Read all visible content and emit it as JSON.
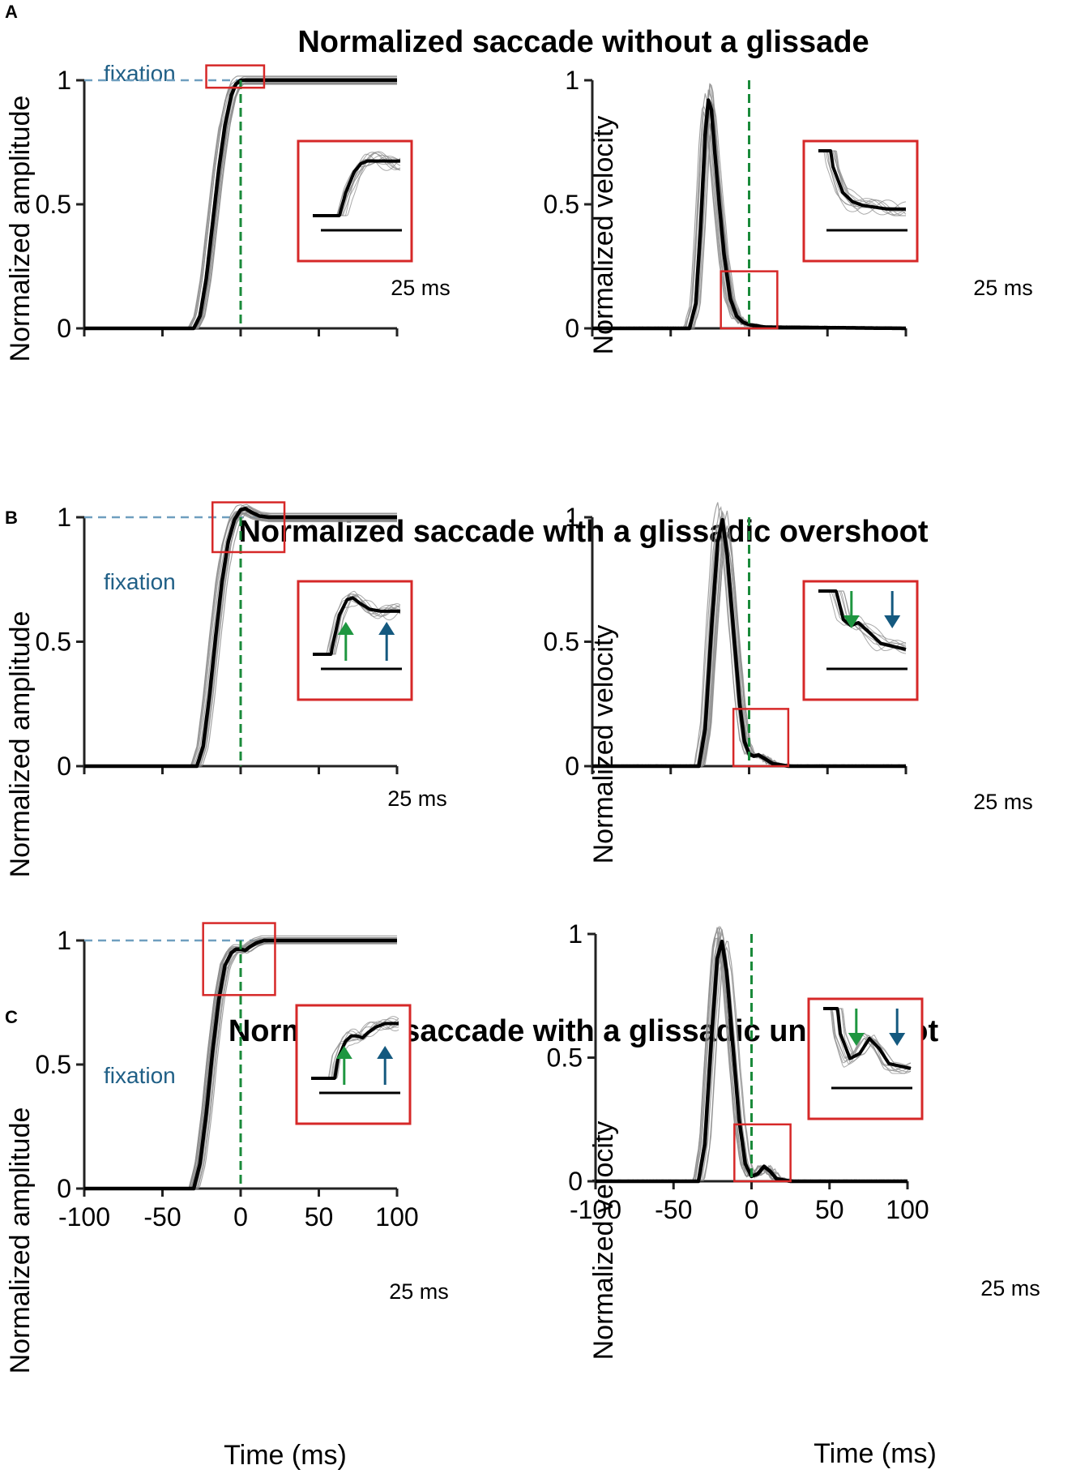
{
  "panels": [
    {
      "letter": "A",
      "title": "Normalized saccade without a glissade",
      "amplitude": {
        "ylabel": "Normalized amplitude",
        "fixation_label": "fixation",
        "inset_scale": "25 ms"
      },
      "velocity": {
        "ylabel": "Normalized velocity",
        "inset_scale": "25 ms"
      }
    },
    {
      "letter": "B",
      "title": "Normalized  saccade with a glissadic overshoot",
      "amplitude": {
        "ylabel": "Normalized amplitude",
        "fixation_label": "fixation",
        "inset_scale": "25 ms"
      },
      "velocity": {
        "ylabel": "Normalized velocity",
        "inset_scale": "25 ms"
      }
    },
    {
      "letter": "C",
      "title": "Normalized saccade with a glissadic undershoot",
      "amplitude": {
        "ylabel": "Normalized amplitude",
        "fixation_label": "fixation",
        "inset_scale": "25 ms"
      },
      "velocity": {
        "ylabel": "Normalized velocity",
        "inset_scale": "25 ms"
      }
    }
  ],
  "axes": {
    "xlabel": "Time (ms)",
    "xticks": [
      "-100",
      "-50",
      "0",
      "50",
      "100"
    ],
    "yticks": [
      "0",
      "0.5",
      "1"
    ]
  },
  "colors": {
    "mean_trace": "#000000",
    "individual_traces": "#8c8c8c",
    "saccade_end_line": "#1a8a3a",
    "fixation_line": "#6f9fbf",
    "zoom_box": "#d62828",
    "green_arrow": "#1e9640",
    "blue_arrow": "#14597f"
  },
  "chart_data": [
    {
      "type": "line",
      "panel": "A",
      "title": "Normalized saccade without a glissade",
      "xlabel": "",
      "ylabel": "Normalized amplitude",
      "xlim": [
        -100,
        100
      ],
      "ylim": [
        0,
        1
      ],
      "annotations": [
        "fixation level at 1",
        "saccade end at 0 ms",
        "inset: zoom on -25 to 15 ms",
        "scale bar 25 ms"
      ],
      "series": [
        {
          "name": "mean",
          "x": [
            -100,
            -30,
            -26,
            -22,
            -18,
            -14,
            -10,
            -6,
            -3,
            0,
            5,
            20,
            100
          ],
          "y": [
            0,
            0,
            0.05,
            0.2,
            0.42,
            0.64,
            0.82,
            0.94,
            0.985,
            1.0,
            1.0,
            1.0,
            1.0
          ]
        }
      ]
    },
    {
      "type": "line",
      "panel": "A",
      "title": "Normalized saccade without a glissade",
      "xlabel": "",
      "ylabel": "Normalized velocity",
      "xlim": [
        -100,
        100
      ],
      "ylim": [
        0,
        1
      ],
      "annotations": [
        "saccade end at 0 ms",
        "inset: zoom on -18 to 18 ms",
        "scale bar 25 ms"
      ],
      "series": [
        {
          "name": "mean",
          "x": [
            -100,
            -38,
            -34,
            -31,
            -28,
            -26,
            -24,
            -22,
            -19,
            -16,
            -12,
            -8,
            -4,
            0,
            5,
            10,
            100
          ],
          "y": [
            0,
            0,
            0.1,
            0.4,
            0.78,
            0.92,
            0.88,
            0.72,
            0.5,
            0.3,
            0.12,
            0.05,
            0.025,
            0.015,
            0.01,
            0.005,
            0
          ]
        }
      ]
    },
    {
      "type": "line",
      "panel": "B",
      "title": "Normalized  saccade with a glissadic overshoot",
      "xlabel": "",
      "ylabel": "Normalized amplitude",
      "xlim": [
        -100,
        100
      ],
      "ylim": [
        0,
        1
      ],
      "annotations": [
        "fixation level at 1",
        "saccade end at 0 ms",
        "inset: zoom on -18 to 28 ms",
        "green and blue arrows mark glissade onset and end",
        "scale bar 25 ms"
      ],
      "series": [
        {
          "name": "mean",
          "x": [
            -100,
            -28,
            -24,
            -20,
            -16,
            -12,
            -8,
            -4,
            0,
            3,
            7,
            12,
            18,
            25,
            100
          ],
          "y": [
            0,
            0,
            0.08,
            0.28,
            0.52,
            0.74,
            0.9,
            0.99,
            1.03,
            1.035,
            1.02,
            1.005,
            1.0,
            1.0,
            1.0
          ]
        }
      ]
    },
    {
      "type": "line",
      "panel": "B",
      "title": "Normalized  saccade with a glissadic overshoot",
      "xlabel": "",
      "ylabel": "Normalized velocity",
      "xlim": [
        -100,
        100
      ],
      "ylim": [
        0,
        1
      ],
      "annotations": [
        "saccade end at 0 ms",
        "inset: zoom on -10 to 25 ms",
        "green and blue arrows mark glissade velocity peaks",
        "scale bar 25 ms"
      ],
      "series": [
        {
          "name": "mean",
          "x": [
            -100,
            -32,
            -28,
            -24,
            -20,
            -17,
            -14,
            -10,
            -6,
            -3,
            0,
            3,
            6,
            10,
            15,
            25,
            100
          ],
          "y": [
            0,
            0,
            0.15,
            0.55,
            0.9,
            0.99,
            0.85,
            0.55,
            0.25,
            0.1,
            0.05,
            0.04,
            0.045,
            0.03,
            0.01,
            0,
            0
          ]
        }
      ]
    },
    {
      "type": "line",
      "panel": "C",
      "title": "Normalized saccade with a glissadic undershoot",
      "xlabel": "Time (ms)",
      "ylabel": "Normalized amplitude",
      "xlim": [
        -100,
        100
      ],
      "ylim": [
        0,
        1
      ],
      "annotations": [
        "fixation level at 1",
        "saccade end at 0 ms",
        "inset: zoom on -24 to 22 ms",
        "green and blue arrows mark glissade onset and end",
        "scale bar 25 ms"
      ],
      "series": [
        {
          "name": "mean",
          "x": [
            -100,
            -30,
            -26,
            -22,
            -18,
            -14,
            -10,
            -6,
            -3,
            0,
            3,
            6,
            10,
            15,
            22,
            100
          ],
          "y": [
            0,
            0,
            0.1,
            0.3,
            0.55,
            0.76,
            0.9,
            0.95,
            0.965,
            0.965,
            0.96,
            0.975,
            0.99,
            1.0,
            1.0,
            1.0
          ]
        }
      ]
    },
    {
      "type": "line",
      "panel": "C",
      "title": "Normalized saccade with a glissadic undershoot",
      "xlabel": "Time (ms)",
      "ylabel": "Normalized velocity",
      "xlim": [
        -100,
        100
      ],
      "ylim": [
        0,
        1
      ],
      "annotations": [
        "saccade end at 0 ms",
        "inset: zoom on -11 to 25 ms",
        "green and blue arrows mark glissade velocity peaks",
        "scale bar 25 ms"
      ],
      "series": [
        {
          "name": "mean",
          "x": [
            -100,
            -34,
            -30,
            -26,
            -22,
            -19,
            -16,
            -12,
            -8,
            -4,
            0,
            4,
            8,
            12,
            16,
            25,
            100
          ],
          "y": [
            0,
            0,
            0.15,
            0.55,
            0.9,
            0.97,
            0.85,
            0.55,
            0.25,
            0.07,
            0.02,
            0.03,
            0.06,
            0.04,
            0.01,
            0,
            0
          ]
        }
      ]
    }
  ]
}
